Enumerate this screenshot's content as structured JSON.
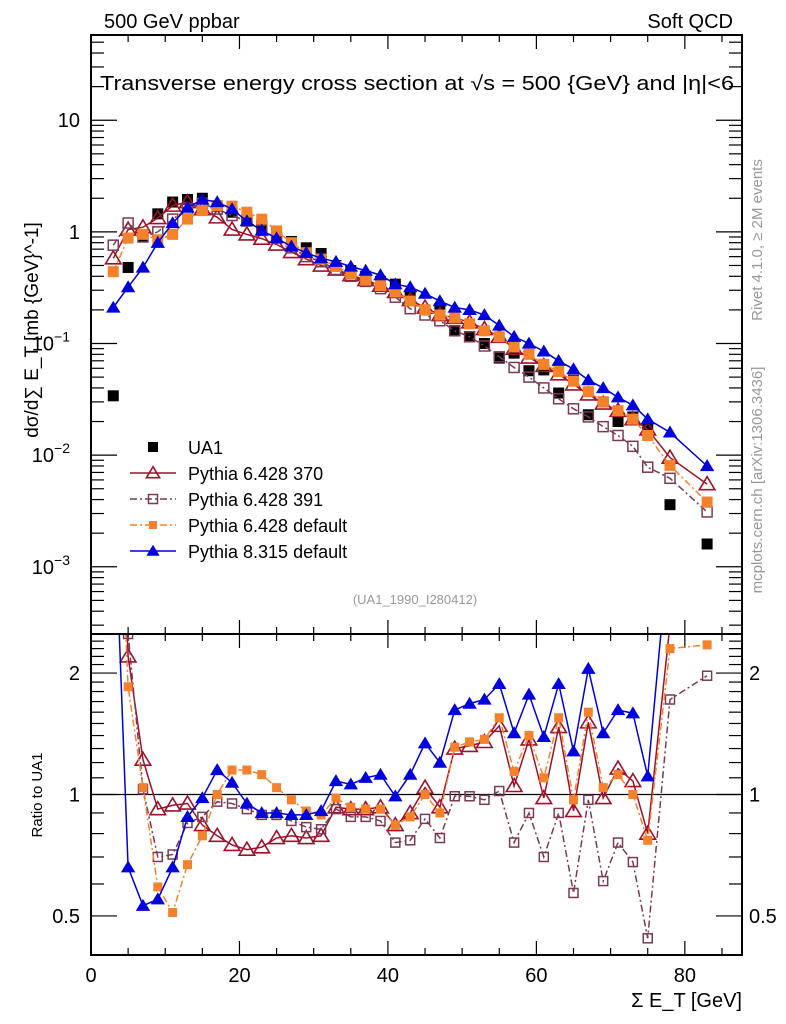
{
  "chart_data": [
    {
      "type": "scatter",
      "panel": "main",
      "title": "Transverse energy cross section at √s = 500 {GeV} and |η|<6",
      "top_left_label": "500 GeV ppbar",
      "top_right_label": "Soft QCD",
      "ylabel": "dσ/d∑ E_T [mb {GeV}^-1]",
      "xlabel": "Σ E_T [GeV]",
      "yscale": "log",
      "xlim": [
        0,
        87.7
      ],
      "ylim": [
        0.00025,
        58
      ],
      "x_ticks": [
        0,
        20,
        40,
        60,
        80
      ],
      "y_ticks": [
        {
          "value": 10,
          "label": "10"
        },
        {
          "value": 1,
          "label": "1"
        },
        {
          "value": 0.1,
          "label": "10−1"
        },
        {
          "value": 0.01,
          "label": "10−2"
        },
        {
          "value": 0.001,
          "label": "10−3"
        }
      ],
      "legend_position": "bottom-left",
      "analysis_label": "(UA1_1990_I280412)",
      "side_label_top": "Rivet 4.1.0, ≥ 2M events",
      "side_label_bottom": "mcplots.cern.ch [arXiv:1306.3436]",
      "x": [
        3,
        5,
        7,
        9,
        11,
        13,
        15,
        17,
        19,
        21,
        23,
        25,
        27,
        29,
        31,
        33,
        35,
        37,
        39,
        41,
        43,
        45,
        47,
        49,
        51,
        53,
        55,
        57,
        59,
        61,
        63,
        65,
        67,
        69,
        71,
        73,
        75,
        78,
        83
      ],
      "series": [
        {
          "name": "UA1",
          "color": "#000000",
          "marker": "filled-square",
          "line": "none",
          "values": [
            0.034,
            0.48,
            0.9,
            1.45,
            1.85,
            1.95,
            2.0,
            1.7,
            1.5,
            1.3,
            1.15,
            0.98,
            0.82,
            0.72,
            0.64,
            0.5,
            0.45,
            0.4,
            0.36,
            0.34,
            0.27,
            0.2,
            0.205,
            0.13,
            0.115,
            0.1,
            0.074,
            0.082,
            0.057,
            0.058,
            0.036,
            0.047,
            0.023,
            0.03,
            0.02,
            0.022,
            0.018,
            0.0036,
            0.0016
          ]
        },
        {
          "name": "Pythia 6.428 370",
          "color": "#a0102a",
          "marker": "open-triangle",
          "line": "solid",
          "values": [
            0.58,
            1.05,
            1.1,
            1.33,
            1.72,
            1.85,
            1.6,
            1.35,
            1.05,
            0.95,
            0.87,
            0.77,
            0.66,
            0.57,
            0.5,
            0.46,
            0.41,
            0.37,
            0.33,
            0.29,
            0.245,
            0.21,
            0.18,
            0.17,
            0.155,
            0.135,
            0.115,
            0.09,
            0.075,
            0.063,
            0.053,
            0.043,
            0.035,
            0.029,
            0.025,
            0.021,
            0.017,
            0.0095,
            0.0055
          ]
        },
        {
          "name": "Pythia 6.428 391",
          "color": "#7a3a55",
          "marker": "open-square",
          "line": "dash-dot",
          "values": [
            0.76,
            1.2,
            0.9,
            1.0,
            1.3,
            1.6,
            1.8,
            1.6,
            1.4,
            1.25,
            1.03,
            0.88,
            0.72,
            0.6,
            0.54,
            0.46,
            0.4,
            0.36,
            0.31,
            0.26,
            0.205,
            0.18,
            0.16,
            0.13,
            0.115,
            0.095,
            0.076,
            0.061,
            0.05,
            0.04,
            0.032,
            0.026,
            0.022,
            0.018,
            0.015,
            0.012,
            0.0078,
            0.0062,
            0.0031
          ]
        },
        {
          "name": "Pythia 6.428 default",
          "color": "#f5822a",
          "marker": "filled-square",
          "line": "dash-dot",
          "values": [
            0.44,
            0.88,
            0.95,
            0.85,
            0.95,
            1.3,
            1.55,
            1.72,
            1.7,
            1.5,
            1.3,
            1.02,
            0.8,
            0.65,
            0.57,
            0.49,
            0.42,
            0.37,
            0.33,
            0.29,
            0.24,
            0.2,
            0.18,
            0.17,
            0.15,
            0.13,
            0.115,
            0.093,
            0.08,
            0.065,
            0.056,
            0.046,
            0.037,
            0.03,
            0.025,
            0.021,
            0.015,
            0.0081,
            0.0038
          ]
        },
        {
          "name": "Pythia 8.315 default",
          "color": "#0000dd",
          "marker": "filled-triangle",
          "line": "solid",
          "values": [
            0.21,
            0.32,
            0.48,
            0.8,
            1.2,
            1.65,
            1.95,
            1.85,
            1.6,
            1.25,
            1.03,
            0.88,
            0.74,
            0.65,
            0.58,
            0.54,
            0.49,
            0.45,
            0.41,
            0.34,
            0.32,
            0.28,
            0.24,
            0.21,
            0.2,
            0.18,
            0.145,
            0.115,
            0.1,
            0.085,
            0.07,
            0.059,
            0.047,
            0.04,
            0.033,
            0.028,
            0.021,
            0.016,
            0.008
          ]
        }
      ]
    },
    {
      "type": "line",
      "panel": "ratio",
      "ylabel": "Ratio to UA1",
      "xlabel": "Σ E_T [GeV]",
      "yscale": "log",
      "xlim": [
        0,
        87.7
      ],
      "ylim": [
        0.4,
        2.5
      ],
      "y_ticks": [
        {
          "value": 0.5,
          "label": "0.5"
        },
        {
          "value": 1,
          "label": "1"
        },
        {
          "value": 2,
          "label": "2"
        }
      ],
      "reference_line": 1,
      "x": [
        3,
        5,
        7,
        9,
        11,
        13,
        15,
        17,
        19,
        21,
        23,
        25,
        27,
        29,
        31,
        33,
        35,
        37,
        39,
        41,
        43,
        45,
        47,
        49,
        51,
        53,
        55,
        57,
        59,
        61,
        63,
        65,
        67,
        69,
        71,
        73,
        75,
        78,
        83
      ],
      "series": [
        {
          "name": "Pythia 6.428 370",
          "color": "#a0102a",
          "marker": "open-triangle",
          "line": "solid",
          "values": [
            17,
            2.2,
            1.22,
            0.92,
            0.94,
            0.95,
            0.84,
            0.79,
            0.75,
            0.73,
            0.74,
            0.78,
            0.79,
            0.78,
            0.79,
            0.93,
            0.92,
            0.92,
            0.93,
            0.84,
            0.9,
            1.04,
            0.93,
            1.3,
            1.32,
            1.35,
            1.48,
            1.05,
            1.37,
            0.98,
            1.47,
            0.91,
            1.51,
            0.98,
            1.16,
            1.08,
            0.8,
            2.64,
            3.4
          ]
        },
        {
          "name": "Pythia 6.428 391",
          "color": "#7a3a55",
          "marker": "open-square",
          "line": "dash-dot",
          "values": [
            22,
            2.5,
            1.03,
            0.7,
            0.71,
            0.85,
            0.88,
            0.96,
            0.95,
            0.92,
            0.89,
            0.89,
            0.86,
            0.83,
            0.82,
            0.92,
            0.88,
            0.88,
            0.86,
            0.76,
            0.77,
            0.87,
            0.78,
            0.99,
            0.99,
            0.97,
            1.02,
            0.76,
            0.9,
            0.7,
            0.9,
            0.57,
            0.97,
            0.61,
            0.76,
            0.68,
            0.44,
            1.72,
            1.97
          ]
        },
        {
          "name": "Pythia 6.428 default",
          "color": "#f5822a",
          "marker": "filled-square",
          "line": "dash-dot",
          "values": [
            13,
            1.85,
            1.04,
            0.59,
            0.51,
            0.67,
            0.79,
            1.0,
            1.15,
            1.15,
            1.12,
            1.04,
            0.97,
            0.91,
            0.89,
            0.98,
            0.93,
            0.92,
            0.92,
            0.84,
            0.88,
            1.0,
            0.9,
            1.31,
            1.35,
            1.37,
            1.55,
            1.14,
            1.4,
            1.1,
            1.55,
            0.97,
            1.6,
            1.04,
            1.12,
            1.0,
            0.77,
            2.3,
            2.35
          ]
        },
        {
          "name": "Pythia 8.315 default",
          "color": "#0000dd",
          "marker": "filled-triangle",
          "line": "solid",
          "values": [
            6.2,
            0.66,
            0.53,
            0.55,
            0.66,
            0.88,
            0.98,
            1.15,
            1.07,
            0.95,
            0.9,
            0.9,
            0.89,
            0.89,
            0.91,
            1.08,
            1.06,
            1.1,
            1.12,
            0.99,
            1.12,
            1.34,
            1.2,
            1.62,
            1.68,
            1.72,
            1.88,
            1.42,
            1.77,
            1.39,
            1.88,
            1.28,
            2.05,
            1.42,
            1.62,
            1.59,
            1.11,
            4.4,
            5.0
          ]
        }
      ]
    }
  ]
}
